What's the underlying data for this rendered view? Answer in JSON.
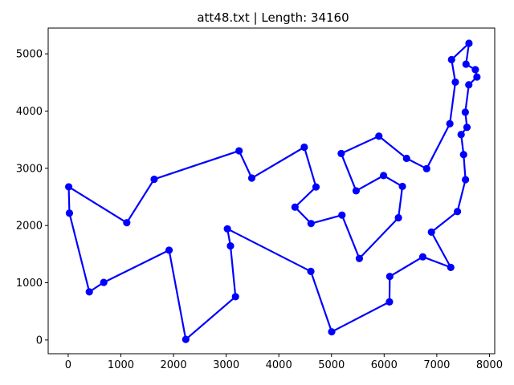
{
  "chart_data": {
    "type": "line",
    "title": "att48.txt | Length: 34160",
    "xlabel": "",
    "ylabel": "",
    "xlim": [
      -380,
      8100
    ],
    "ylim": [
      -240,
      5450
    ],
    "xticks": [
      0,
      1000,
      2000,
      3000,
      4000,
      5000,
      6000,
      7000,
      8000
    ],
    "yticks": [
      0,
      1000,
      2000,
      3000,
      4000,
      5000
    ],
    "grid": false,
    "legend": "none",
    "color": "#0000ff",
    "series": [
      {
        "closed": true,
        "points": [
          [
            6734,
            1453
          ],
          [
            7265,
            1268
          ],
          [
            6898,
            1885
          ],
          [
            7392,
            2244
          ],
          [
            7545,
            2801
          ],
          [
            7509,
            3239
          ],
          [
            7462,
            3590
          ],
          [
            7573,
            3716
          ],
          [
            7541,
            3981
          ],
          [
            7608,
            4458
          ],
          [
            7762,
            4595
          ],
          [
            7732,
            4723
          ],
          [
            7555,
            4819
          ],
          [
            7611,
            5184
          ],
          [
            7280,
            4899
          ],
          [
            7352,
            4506
          ],
          [
            7248,
            3779
          ],
          [
            6807,
            2993
          ],
          [
            6426,
            3173
          ],
          [
            5900,
            3561
          ],
          [
            5185,
            3258
          ],
          [
            5468,
            2606
          ],
          [
            5989,
            2873
          ],
          [
            6347,
            2683
          ],
          [
            6271,
            2135
          ],
          [
            5529,
            1424
          ],
          [
            5199,
            2182
          ],
          [
            4612,
            2035
          ],
          [
            4307,
            2322
          ],
          [
            4706,
            2674
          ],
          [
            4483,
            3369
          ],
          [
            3486,
            2829
          ],
          [
            3245,
            3305
          ],
          [
            1633,
            2809
          ],
          [
            1112,
            2049
          ],
          [
            10,
            2676
          ],
          [
            23,
            2216
          ],
          [
            401,
            841
          ],
          [
            675,
            1006
          ],
          [
            1916,
            1569
          ],
          [
            2233,
            10
          ],
          [
            3177,
            756
          ],
          [
            3082,
            1644
          ],
          [
            3023,
            1942
          ],
          [
            4608,
            1198
          ],
          [
            5004,
            143
          ],
          [
            6101,
            666
          ],
          [
            6107,
            1110
          ]
        ]
      }
    ]
  }
}
